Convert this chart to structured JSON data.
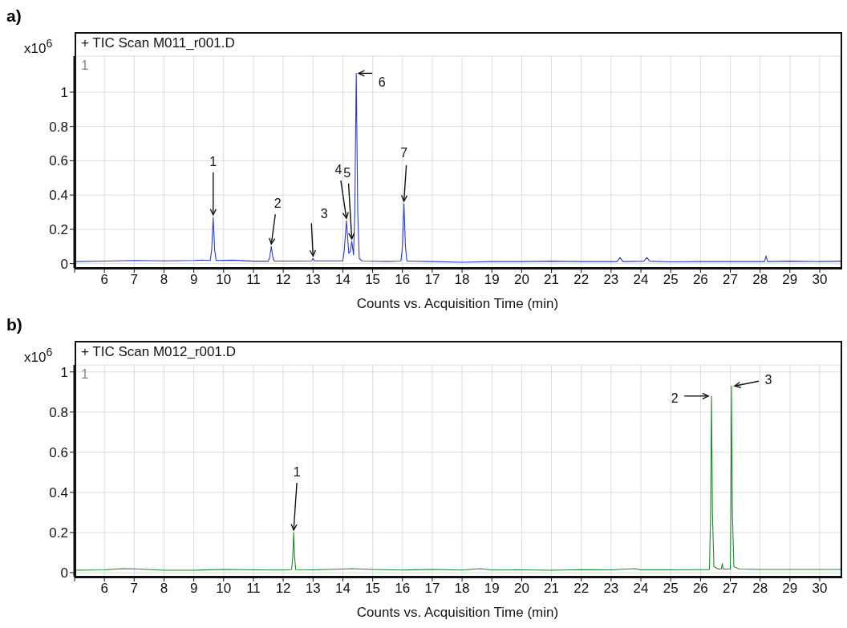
{
  "chart_data": [
    {
      "type": "line",
      "title": "a)",
      "subtitle": "+ TIC Scan M011_r001.D",
      "xlabel": "Counts vs. Acquisition Time (min)",
      "ylabel": "x10$^{6}$",
      "x": [
        5.05,
        6,
        7,
        8,
        9,
        9.3,
        9.55,
        9.6,
        9.65,
        9.7,
        9.75,
        10.3,
        11,
        11.5,
        11.55,
        11.6,
        11.65,
        11.7,
        12.5,
        12.95,
        13.0,
        13.05,
        14.0,
        14.05,
        14.12,
        14.2,
        14.25,
        14.3,
        14.36,
        14.4,
        14.45,
        14.5,
        14.55,
        14.65,
        15.5,
        15.95,
        16.0,
        16.05,
        16.1,
        16.15,
        17,
        18,
        19,
        20,
        21,
        22,
        23.2,
        23.3,
        23.4,
        24.1,
        24.2,
        24.3,
        25,
        26,
        27,
        28.15,
        28.2,
        28.25,
        29,
        30,
        30.7
      ],
      "series": [
        {
          "color": "#2a3bd0",
          "values": [
            0.012,
            0.015,
            0.018,
            0.016,
            0.018,
            0.02,
            0.018,
            0.08,
            0.27,
            0.08,
            0.018,
            0.02,
            0.014,
            0.014,
            0.04,
            0.1,
            0.04,
            0.015,
            0.015,
            0.016,
            0.03,
            0.016,
            0.016,
            0.08,
            0.25,
            0.06,
            0.07,
            0.13,
            0.05,
            0.3,
            1.11,
            0.3,
            0.03,
            0.015,
            0.013,
            0.015,
            0.1,
            0.35,
            0.1,
            0.015,
            0.012,
            0.008,
            0.012,
            0.012,
            0.014,
            0.012,
            0.012,
            0.035,
            0.012,
            0.014,
            0.035,
            0.014,
            0.01,
            0.012,
            0.012,
            0.012,
            0.045,
            0.012,
            0.014,
            0.012,
            0.014
          ]
        }
      ],
      "xlim": [
        5,
        30.7
      ],
      "ylim": [
        -0.025,
        1.21
      ],
      "xticks": [
        {
          "value": 5,
          "label": null
        },
        6,
        7,
        8,
        9,
        10,
        11,
        12,
        13,
        14,
        15,
        16,
        17,
        18,
        19,
        20,
        21,
        22,
        23,
        24,
        25,
        26,
        27,
        28,
        29,
        30
      ],
      "yticks": [
        0,
        0.2,
        0.4,
        0.6,
        0.8,
        1
      ],
      "grid": true,
      "annotations": [
        "1",
        {
          "text": "1",
          "x": 9.65,
          "y": 0.27
        },
        {
          "text": "2",
          "x": 11.6,
          "y": 0.1
        },
        {
          "text": "3",
          "x": 13.0,
          "y": 0.03
        },
        {
          "text": "4",
          "x": 14.12,
          "y": 0.25
        },
        {
          "text": "5",
          "x": 14.3,
          "y": 0.13
        },
        {
          "text": "6",
          "x": 14.45,
          "y": 1.11
        },
        {
          "text": "7",
          "x": 16.05,
          "y": 0.35
        }
      ]
    },
    {
      "type": "line",
      "title": "b)",
      "subtitle": "+ TIC Scan M012_r001.D",
      "xlabel": "Counts vs. Acquisition Time (min)",
      "ylabel": "x10$^{6}$",
      "x": [
        5.05,
        6,
        6.6,
        7,
        8,
        9,
        10,
        11,
        12,
        12.28,
        12.32,
        12.35,
        12.38,
        12.42,
        13,
        14,
        14.3,
        15,
        16,
        17,
        18,
        18.6,
        19,
        20,
        21,
        22,
        23,
        23.8,
        24,
        25,
        26,
        26.3,
        26.34,
        26.37,
        26.4,
        26.45,
        26.6,
        26.7,
        26.73,
        26.76,
        27.0,
        27.02,
        27.04,
        27.07,
        27.12,
        27.3,
        28,
        29,
        30,
        30.7
      ],
      "series": [
        {
          "color": "#1b8a2b",
          "values": [
            0.012,
            0.014,
            0.02,
            0.019,
            0.012,
            0.012,
            0.016,
            0.014,
            0.013,
            0.015,
            0.08,
            0.2,
            0.08,
            0.015,
            0.014,
            0.018,
            0.02,
            0.016,
            0.013,
            0.016,
            0.013,
            0.02,
            0.013,
            0.014,
            0.012,
            0.015,
            0.014,
            0.02,
            0.014,
            0.014,
            0.015,
            0.015,
            0.3,
            0.88,
            0.3,
            0.03,
            0.018,
            0.018,
            0.045,
            0.018,
            0.018,
            0.3,
            0.93,
            0.3,
            0.03,
            0.018,
            0.016,
            0.016,
            0.016,
            0.016
          ]
        }
      ],
      "xlim": [
        5,
        30.7
      ],
      "ylim": [
        -0.02,
        1.035
      ],
      "xticks": [
        {
          "value": 5,
          "label": null
        },
        6,
        7,
        8,
        9,
        10,
        11,
        12,
        13,
        14,
        15,
        16,
        17,
        18,
        19,
        20,
        21,
        22,
        23,
        24,
        25,
        26,
        27,
        28,
        29,
        30
      ],
      "yticks": [
        0,
        0.2,
        0.4,
        0.6,
        0.8,
        1
      ],
      "grid": true,
      "annotations": [
        "1",
        {
          "text": "1",
          "x": 12.35,
          "y": 0.2
        },
        {
          "text": "2",
          "x": 26.37,
          "y": 0.88
        },
        {
          "text": "3",
          "x": 27.04,
          "y": 0.93
        }
      ]
    }
  ]
}
